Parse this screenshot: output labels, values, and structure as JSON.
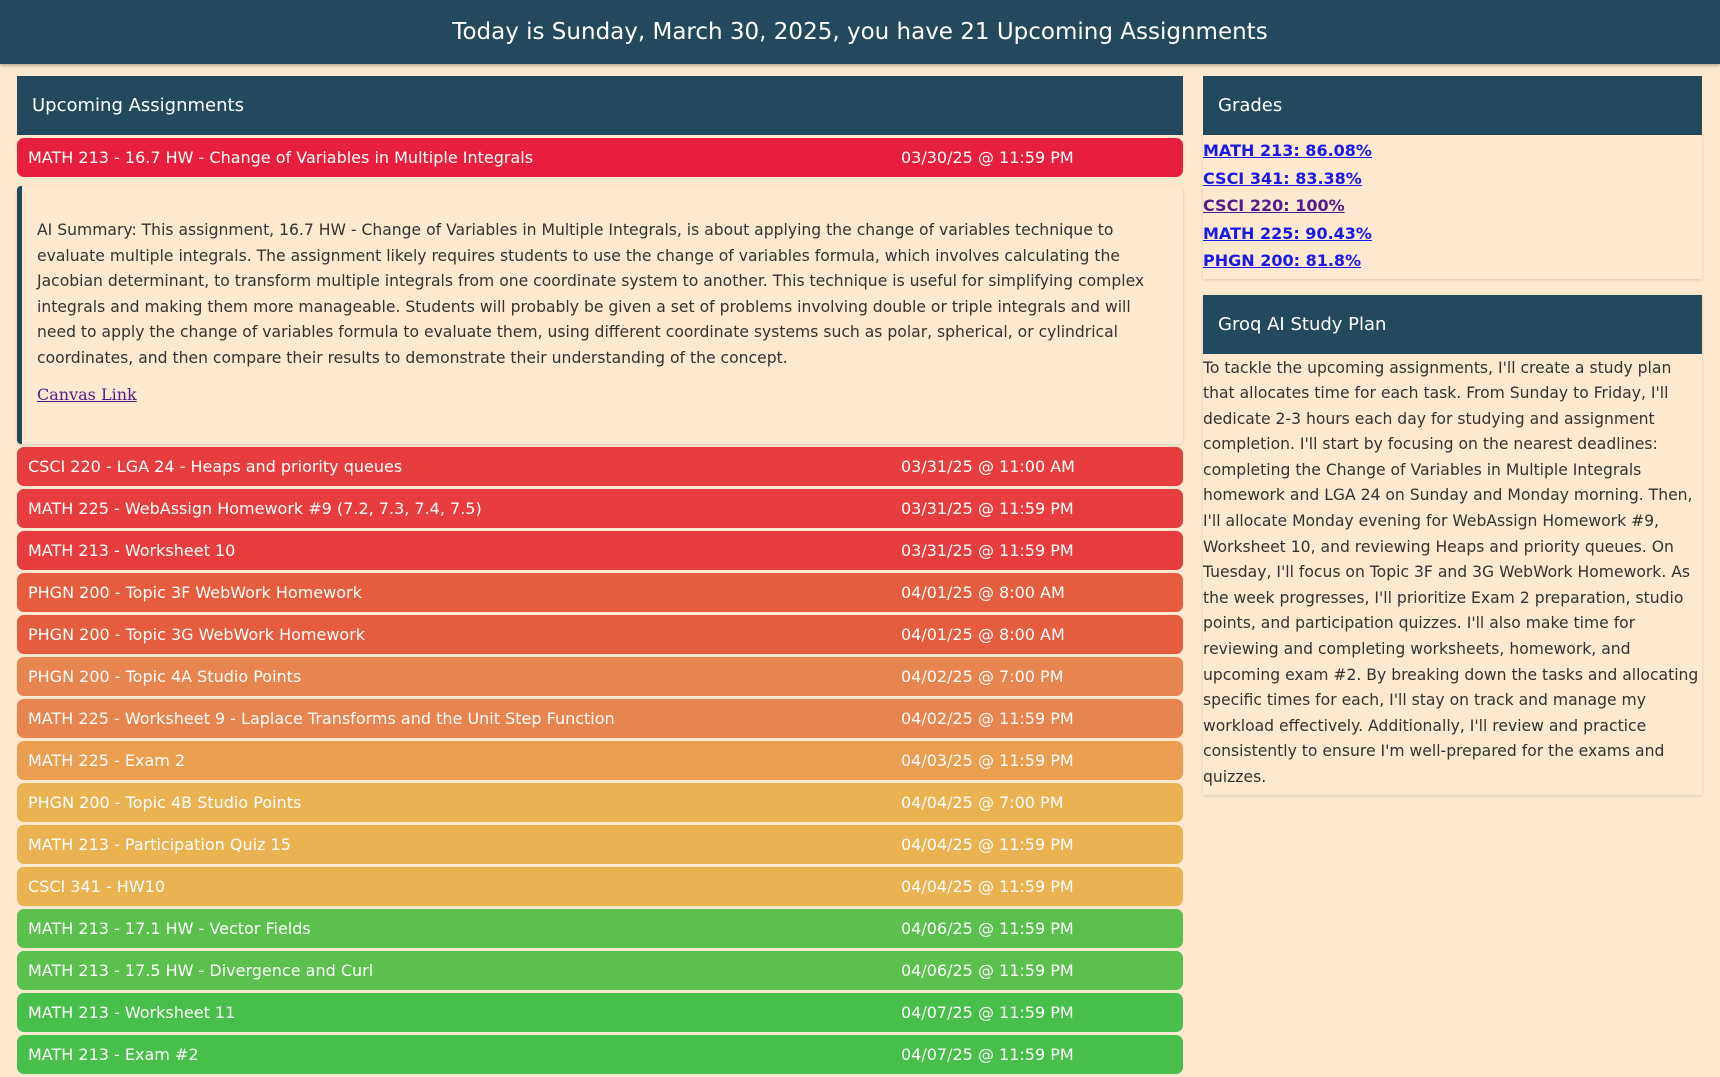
{
  "header": {
    "title": "Today is Sunday, March 30, 2025, you have 21 Upcoming Assignments"
  },
  "assignments": {
    "heading": "Upcoming Assignments",
    "expanded": {
      "summary": "AI Summary: This assignment, 16.7 HW - Change of Variables in Multiple Integrals, is about applying the change of variables technique to evaluate multiple integrals. The assignment likely requires students to use the change of variables formula, which involves calculating the Jacobian determinant, to transform multiple integrals from one coordinate system to another. This technique is useful for simplifying complex integrals and making them more manageable. Students will probably be given a set of problems involving double or triple integrals and will need to apply the change of variables formula to evaluate them, using different coordinate systems such as polar, spherical, or cylindrical coordinates, and then compare their results to demonstrate their understanding of the concept.",
      "link_label": "Canvas Link"
    },
    "items": [
      {
        "title": "MATH 213 - 16.7 HW - Change of Variables in Multiple Integrals",
        "due": "03/30/25 @ 11:59 PM",
        "color": "#e81f3c"
      },
      {
        "title": "CSCI 220 - LGA 24 - Heaps and priority queues",
        "due": "03/31/25 @ 11:00 AM",
        "color": "#e83d3e"
      },
      {
        "title": "MATH 225 - WebAssign Homework #9 (7.2, 7.3, 7.4, 7.5)",
        "due": "03/31/25 @ 11:59 PM",
        "color": "#e83d3e"
      },
      {
        "title": "MATH 213 - Worksheet 10",
        "due": "03/31/25 @ 11:59 PM",
        "color": "#e83d3e"
      },
      {
        "title": "PHGN 200 - Topic 3F WebWork Homework",
        "due": "04/01/25 @ 8:00 AM",
        "color": "#e65c3e"
      },
      {
        "title": "PHGN 200 - Topic 3G WebWork Homework",
        "due": "04/01/25 @ 8:00 AM",
        "color": "#e65c3e"
      },
      {
        "title": "PHGN 200 - Topic 4A Studio Points",
        "due": "04/02/25 @ 7:00 PM",
        "color": "#e8844f"
      },
      {
        "title": "MATH 225 - Worksheet 9 - Laplace Transforms and the Unit Step Function",
        "due": "04/02/25 @ 11:59 PM",
        "color": "#e8844f"
      },
      {
        "title": "MATH 225 - Exam 2",
        "due": "04/03/25 @ 11:59 PM",
        "color": "#eb9d50"
      },
      {
        "title": "PHGN 200 - Topic 4B Studio Points",
        "due": "04/04/25 @ 7:00 PM",
        "color": "#ebb251"
      },
      {
        "title": "MATH 213 - Participation Quiz 15",
        "due": "04/04/25 @ 11:59 PM",
        "color": "#ebb251"
      },
      {
        "title": "CSCI 341 - HW10",
        "due": "04/04/25 @ 11:59 PM",
        "color": "#ebb251"
      },
      {
        "title": "MATH 213 - 17.1 HW - Vector Fields",
        "due": "04/06/25 @ 11:59 PM",
        "color": "#5cc04f"
      },
      {
        "title": "MATH 213 - 17.5 HW - Divergence and Curl",
        "due": "04/06/25 @ 11:59 PM",
        "color": "#5cc04f"
      },
      {
        "title": "MATH 213 - Worksheet 11",
        "due": "04/07/25 @ 11:59 PM",
        "color": "#48bf4b"
      },
      {
        "title": "MATH 213 - Exam #2",
        "due": "04/07/25 @ 11:59 PM",
        "color": "#48bf4b"
      }
    ]
  },
  "grades": {
    "heading": "Grades",
    "items": [
      {
        "label": "MATH 213: 86.08%",
        "color": "#1a1ae6"
      },
      {
        "label": "CSCI 341: 83.38%",
        "color": "#1a1ae6"
      },
      {
        "label": "CSCI 220: 100%",
        "color": "#551a8b"
      },
      {
        "label": "MATH 225: 90.43%",
        "color": "#1a1ae6"
      },
      {
        "label": "PHGN 200: 81.8%",
        "color": "#1a1ae6"
      }
    ]
  },
  "study_plan": {
    "heading": "Groq AI Study Plan",
    "text": "To tackle the upcoming assignments, I'll create a study plan that allocates time for each task. From Sunday to Friday, I'll dedicate 2-3 hours each day for studying and assignment completion. I'll start by focusing on the nearest deadlines: completing the Change of Variables in Multiple Integrals homework and LGA 24 on Sunday and Monday morning. Then, I'll allocate Monday evening for WebAssign Homework #9, Worksheet 10, and reviewing Heaps and priority queues. On Tuesday, I'll focus on Topic 3F and 3G WebWork Homework. As the week progresses, I'll prioritize Exam 2 preparation, studio points, and participation quizzes. I'll also make time for reviewing and completing worksheets, homework, and upcoming exam #2. By breaking down the tasks and allocating specific times for each, I'll stay on track and manage my workload effectively. Additionally, I'll review and practice consistently to ensure I'm well-prepared for the exams and quizzes."
  }
}
